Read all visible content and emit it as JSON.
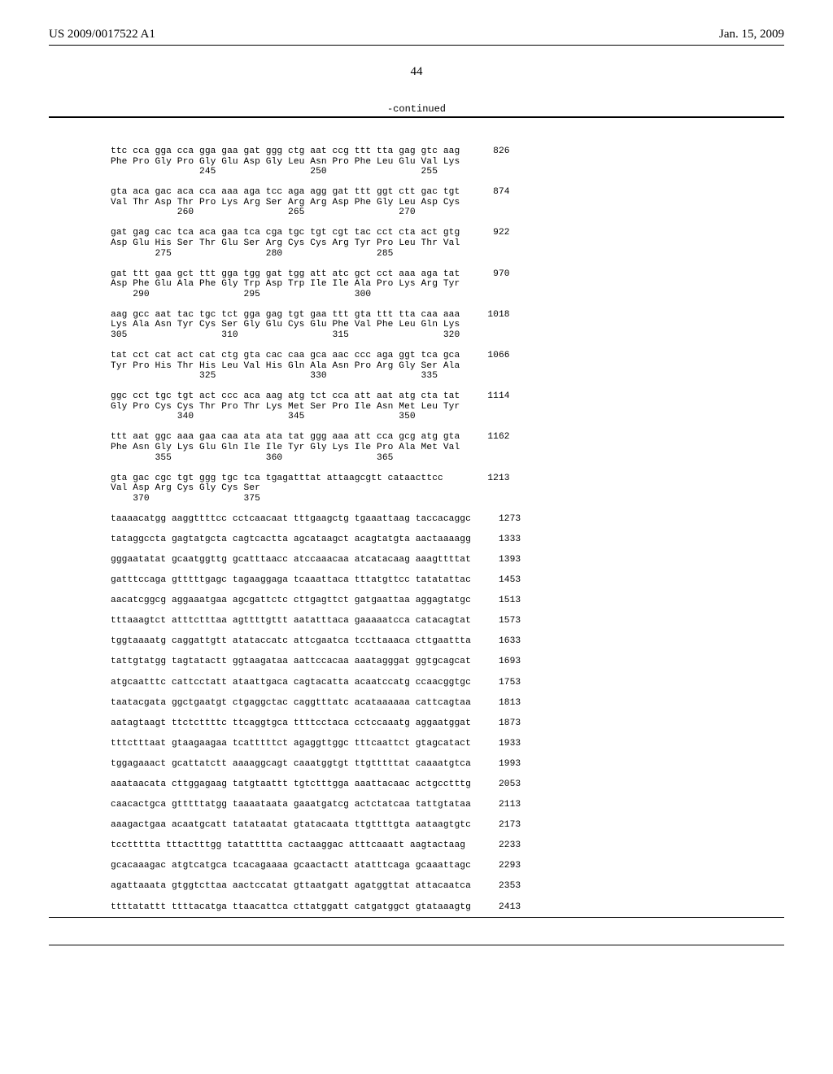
{
  "header": {
    "left": "US 2009/0017522 A1",
    "right": "Jan. 15, 2009"
  },
  "page_number": "44",
  "continued_label": "-continued",
  "sequence_text": "ttc cca gga cca gga gaa gat ggg ctg aat ccg ttt tta gag gtc aag      826\nPhe Pro Gly Pro Gly Glu Asp Gly Leu Asn Pro Phe Leu Glu Val Lys\n                245                 250                 255\n\ngta aca gac aca cca aaa aga tcc aga agg gat ttt ggt ctt gac tgt      874\nVal Thr Asp Thr Pro Lys Arg Ser Arg Arg Asp Phe Gly Leu Asp Cys\n            260                 265                 270\n\ngat gag cac tca aca gaa tca cga tgc tgt cgt tac cct cta act gtg      922\nAsp Glu His Ser Thr Glu Ser Arg Cys Cys Arg Tyr Pro Leu Thr Val\n        275                 280                 285\n\ngat ttt gaa gct ttt gga tgg gat tgg att atc gct cct aaa aga tat      970\nAsp Phe Glu Ala Phe Gly Trp Asp Trp Ile Ile Ala Pro Lys Arg Tyr\n    290                 295                 300\n\naag gcc aat tac tgc tct gga gag tgt gaa ttt gta ttt tta caa aaa     1018\nLys Ala Asn Tyr Cys Ser Gly Glu Cys Glu Phe Val Phe Leu Gln Lys\n305                 310                 315                 320\n\ntat cct cat act cat ctg gta cac caa gca aac ccc aga ggt tca gca     1066\nTyr Pro His Thr His Leu Val His Gln Ala Asn Pro Arg Gly Ser Ala\n                325                 330                 335\n\nggc cct tgc tgt act ccc aca aag atg tct cca att aat atg cta tat     1114\nGly Pro Cys Cys Thr Pro Thr Lys Met Ser Pro Ile Asn Met Leu Tyr\n            340                 345                 350\n\nttt aat ggc aaa gaa caa ata ata tat ggg aaa att cca gcg atg gta     1162\nPhe Asn Gly Lys Glu Gln Ile Ile Tyr Gly Lys Ile Pro Ala Met Val\n        355                 360                 365\n\ngta gac cgc tgt ggg tgc tca tgagatttat attaagcgtt cataacttcc        1213\nVal Asp Arg Cys Gly Cys Ser\n    370                 375\n\ntaaaacatgg aaggttttcc cctcaacaat tttgaagctg tgaaattaag taccacaggc     1273\n\ntataggccta gagtatgcta cagtcactta agcataagct acagtatgta aactaaaagg     1333\n\ngggaatatat gcaatggttg gcatttaacc atccaaacaa atcatacaag aaagttttat     1393\n\ngatttccaga gtttttgagc tagaaggaga tcaaattaca tttatgttcc tatatattac     1453\n\naacatcggcg aggaaatgaa agcgattctc cttgagttct gatgaattaa aggagtatgc     1513\n\ntttaaagtct atttctttaa agttttgttt aatatttaca gaaaaatcca catacagtat     1573\n\ntggtaaaatg caggattgtt atataccatc attcgaatca tccttaaaca cttgaattta     1633\n\ntattgtatgg tagtatactt ggtaagataa aattccacaa aaatagggat ggtgcagcat     1693\n\natgcaatttc cattcctatt ataattgaca cagtacatta acaatccatg ccaacggtgc     1753\n\ntaatacgata ggctgaatgt ctgaggctac caggtttatc acataaaaaa cattcagtaa     1813\n\naatagtaagt ttctcttttc ttcaggtgca ttttcctaca cctccaaatg aggaatggat     1873\n\ntttctttaat gtaagaagaa tcatttttct agaggttggc tttcaattct gtagcatact     1933\n\ntggagaaact gcattatctt aaaaggcagt caaatggtgt ttgtttttat caaaatgtca     1993\n\naaataacata cttggagaag tatgtaattt tgtctttgga aaattacaac actgcctttg     2053\n\ncaacactgca gtttttatgg taaaataata gaaatgatcg actctatcaa tattgtataa     2113\n\naaagactgaa acaatgcatt tatataatat gtatacaata ttgttttgta aataagtgtc     2173\n\ntccttttta tttactttgg tatattttta cactaaggac atttcaaatt aagtactaag      2233\n\ngcacaaagac atgtcatgca tcacagaaaa gcaactactt atatttcaga gcaaattagc     2293\n\nagattaaata gtggtcttaa aactccatat gttaatgatt agatggttat attacaatca     2353\n\nttttatattt ttttacatga ttaacattca cttatggatt catgatggct gtataaagtg     2413"
}
